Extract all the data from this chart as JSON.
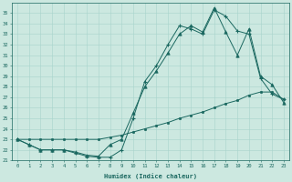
{
  "xlabel": "Humidex (Indice chaleur)",
  "ylabel": "",
  "xlim": [
    -0.5,
    23.5
  ],
  "ylim": [
    21,
    36
  ],
  "background_color": "#cce8e0",
  "grid_color": "#a8d4cc",
  "line_color": "#1a6860",
  "line1_x": [
    0,
    1,
    2,
    3,
    4,
    5,
    6,
    7,
    8,
    9,
    10,
    11,
    12,
    13,
    14,
    15,
    16,
    17,
    18,
    19,
    20,
    21,
    22,
    23
  ],
  "line1_y": [
    23.0,
    22.5,
    22.0,
    22.0,
    22.0,
    21.7,
    21.4,
    21.3,
    21.3,
    22.0,
    25.0,
    28.5,
    30.0,
    32.0,
    33.8,
    33.5,
    33.0,
    35.3,
    34.7,
    33.3,
    33.0,
    28.8,
    27.3,
    26.8
  ],
  "line2_x": [
    0,
    1,
    2,
    3,
    4,
    5,
    6,
    7,
    8,
    9,
    10,
    11,
    12,
    13,
    14,
    15,
    16,
    17,
    18,
    19,
    20,
    21,
    22,
    23
  ],
  "line2_y": [
    23.0,
    22.5,
    22.0,
    22.0,
    22.0,
    21.8,
    21.5,
    21.4,
    22.5,
    23.0,
    25.5,
    28.0,
    29.5,
    31.2,
    33.0,
    33.8,
    33.2,
    35.5,
    33.2,
    31.0,
    33.5,
    29.0,
    28.2,
    26.5
  ],
  "line3_x": [
    0,
    1,
    2,
    3,
    4,
    5,
    6,
    7,
    8,
    9,
    10,
    11,
    12,
    13,
    14,
    15,
    16,
    17,
    18,
    19,
    20,
    21,
    22,
    23
  ],
  "line3_y": [
    23.0,
    23.0,
    23.0,
    23.0,
    23.0,
    23.0,
    23.0,
    23.0,
    23.2,
    23.4,
    23.7,
    24.0,
    24.3,
    24.6,
    25.0,
    25.3,
    25.6,
    26.0,
    26.4,
    26.7,
    27.2,
    27.5,
    27.5,
    26.8
  ],
  "xticks": [
    0,
    1,
    2,
    3,
    4,
    5,
    6,
    7,
    8,
    9,
    10,
    11,
    12,
    13,
    14,
    15,
    16,
    17,
    18,
    19,
    20,
    21,
    22,
    23
  ],
  "yticks": [
    21,
    22,
    23,
    24,
    25,
    26,
    27,
    28,
    29,
    30,
    31,
    32,
    33,
    34,
    35
  ]
}
